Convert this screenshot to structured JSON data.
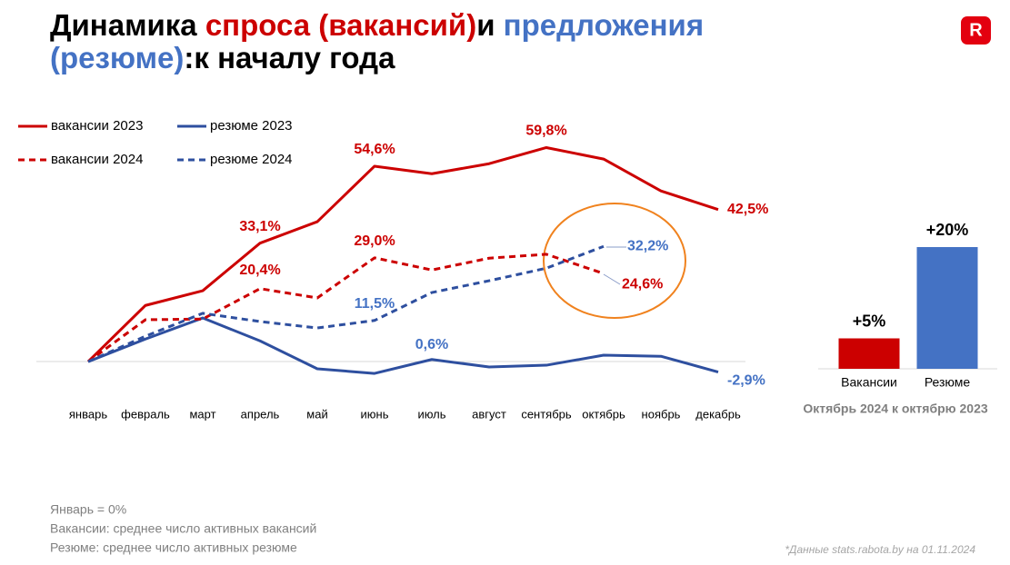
{
  "title": [
    [
      {
        "text": "Динамика ",
        "color": "#000000"
      },
      {
        "text": "спроса (вакансий)",
        "color": "#cc0000"
      },
      {
        "text": "и ",
        "color": "#000000"
      },
      {
        "text": "предложения",
        "color": "#4472c4"
      }
    ],
    [
      {
        "text": "(резюме)",
        "color": "#4472c4"
      },
      {
        "text": ":к началу года",
        "color": "#000000"
      }
    ]
  ],
  "logo": "R",
  "notes": [
    "Январь = 0%",
    "Вакансии: среднее число активных вакансий",
    "Резюме: среднее число активных резюме"
  ],
  "source": "*Данные stats.rabota.by на 01.11.2024",
  "chart_data": [
    {
      "type": "line",
      "categories": [
        "январь",
        "февраль",
        "март",
        "апрель",
        "май",
        "июнь",
        "июль",
        "август",
        "сентябрь",
        "октябрь",
        "ноябрь",
        "декабрь"
      ],
      "ylim": [
        -10,
        65
      ],
      "series": [
        {
          "name": "вакансии 2023",
          "color": "#cc0000",
          "label_color": "#cc0000",
          "dash": false,
          "values": [
            0,
            15.7,
            19.8,
            33.1,
            39.1,
            54.6,
            52.5,
            55.3,
            59.8,
            56.6,
            47.7,
            42.5
          ],
          "value_labels": [
            null,
            null,
            null,
            "33,1%",
            null,
            "54,6%",
            null,
            null,
            "59,8%",
            null,
            null,
            "42,5%"
          ]
        },
        {
          "name": "резюме 2023",
          "color": "#2e4f9f",
          "label_color": "#4472c4",
          "dash": false,
          "values": [
            0,
            6.3,
            12.2,
            5.8,
            -2.0,
            -3.3,
            0.6,
            -1.5,
            -1.0,
            1.8,
            1.5,
            -2.9
          ],
          "value_labels": [
            null,
            null,
            null,
            null,
            null,
            null,
            "0,6%",
            null,
            null,
            null,
            null,
            "-2,9%"
          ]
        },
        {
          "name": "вакансии 2024",
          "color": "#cc0000",
          "label_color": "#cc0000",
          "dash": true,
          "values": [
            0,
            11.7,
            11.9,
            20.4,
            17.8,
            29.0,
            25.6,
            28.9,
            30.0,
            24.6,
            null,
            null
          ],
          "value_labels": [
            null,
            null,
            null,
            "20,4%",
            null,
            "29,0%",
            null,
            null,
            null,
            "24,6%",
            null,
            null
          ]
        },
        {
          "name": "резюме 2024",
          "color": "#2e4f9f",
          "label_color": "#4472c4",
          "dash": true,
          "values": [
            0,
            7.1,
            13.5,
            11.2,
            9.4,
            11.5,
            19.3,
            22.6,
            26.1,
            32.2,
            null,
            null
          ],
          "value_labels": [
            null,
            null,
            null,
            null,
            null,
            "11,5%",
            null,
            null,
            null,
            "32,2%",
            null,
            null
          ]
        }
      ]
    },
    {
      "type": "bar",
      "subtitle": "Октябрь 2024 к октябрю 2023",
      "categories": [
        "Вакансии",
        "Резюме"
      ],
      "values": [
        5,
        20
      ],
      "value_labels": [
        "+5%",
        "+20%"
      ],
      "colors": [
        "#cc0000",
        "#4472c4"
      ],
      "ylim": [
        0,
        20
      ]
    }
  ]
}
